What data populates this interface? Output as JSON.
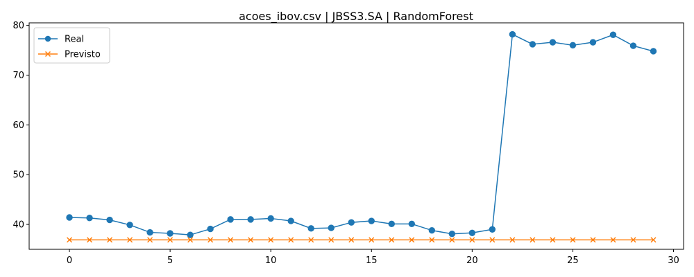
{
  "chart_data": {
    "type": "line",
    "title": "acoes_ibov.csv | JBSS3.SA | RandomForest",
    "xlabel": "",
    "ylabel": "",
    "xlim": [
      -2,
      30.5
    ],
    "ylim": [
      35,
      80.5
    ],
    "xticks": [
      0,
      5,
      10,
      15,
      20,
      25,
      30
    ],
    "yticks": [
      40,
      50,
      60,
      70,
      80
    ],
    "grid": false,
    "legend_position": "top-left",
    "x": [
      0,
      1,
      2,
      3,
      4,
      5,
      6,
      7,
      8,
      9,
      10,
      11,
      12,
      13,
      14,
      15,
      16,
      17,
      18,
      19,
      20,
      21,
      22,
      23,
      24,
      25,
      26,
      27,
      28,
      29
    ],
    "series": [
      {
        "name": "Real",
        "color": "#1f77b4",
        "marker": "circle",
        "values": [
          41.4,
          41.3,
          40.9,
          39.9,
          38.4,
          38.2,
          37.9,
          39.1,
          41.0,
          41.0,
          41.2,
          40.7,
          39.2,
          39.3,
          40.4,
          40.7,
          40.1,
          40.1,
          38.8,
          38.1,
          38.3,
          39.0,
          78.2,
          76.2,
          76.6,
          76.0,
          76.6,
          78.1,
          75.9,
          74.8
        ]
      },
      {
        "name": "Previsto",
        "color": "#ff7f0e",
        "marker": "x",
        "values": [
          36.9,
          36.9,
          36.9,
          36.9,
          36.9,
          36.9,
          36.9,
          36.9,
          36.9,
          36.9,
          36.9,
          36.9,
          36.9,
          36.9,
          36.9,
          36.9,
          36.9,
          36.9,
          36.9,
          36.9,
          36.9,
          36.9,
          36.9,
          36.9,
          36.9,
          36.9,
          36.9,
          36.9,
          36.9,
          36.9
        ]
      }
    ]
  }
}
